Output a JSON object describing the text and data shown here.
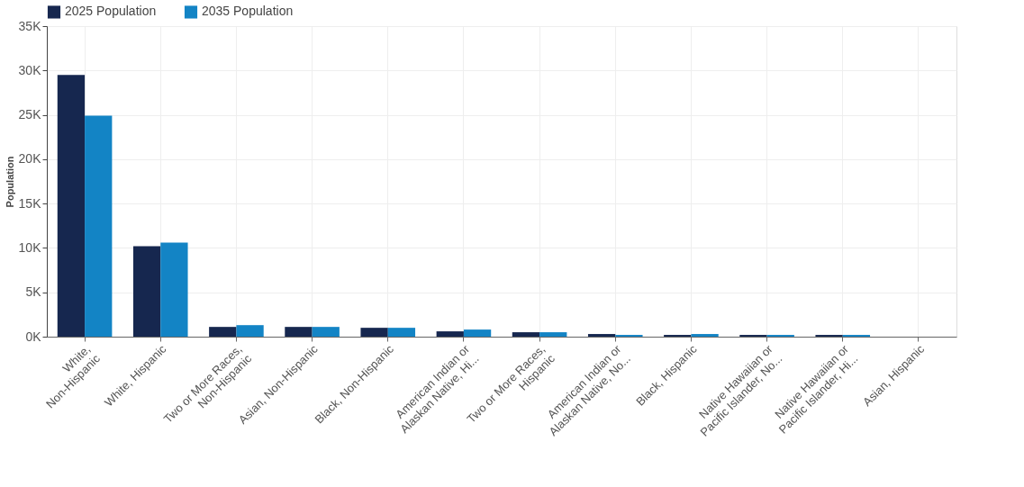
{
  "chart_data": {
    "type": "bar",
    "ylabel": "Population",
    "categories": [
      "White,\nNon-Hispanic",
      "White, Hispanic",
      "Two or More Races,\nNon-Hispanic",
      "Asian, Non-Hispanic",
      "Black, Non-Hispanic",
      "American Indian or\nAlaskan Native, Hi...",
      "Two or More Races,\nHispanic",
      "American Indian or\nAlaskan Native, No...",
      "Black, Hispanic",
      "Native Hawaiian or\nPacific Islander, No...",
      "Native Hawaiian or\nPacific Islander, Hi...",
      "Asian, Hispanic"
    ],
    "series": [
      {
        "name": "2025 Population",
        "color": "#16274f",
        "values": [
          29500,
          10200,
          1100,
          1100,
          1000,
          600,
          500,
          300,
          200,
          200,
          200,
          0
        ]
      },
      {
        "name": "2035 Population",
        "color": "#1384c5",
        "values": [
          24900,
          10600,
          1300,
          1100,
          1000,
          800,
          500,
          200,
          300,
          200,
          200,
          0
        ]
      }
    ],
    "ylim": [
      0,
      35000
    ],
    "yticks": [
      {
        "value": 0,
        "label": "0K"
      },
      {
        "value": 5000,
        "label": "5K"
      },
      {
        "value": 10000,
        "label": "10K"
      },
      {
        "value": 15000,
        "label": "15K"
      },
      {
        "value": 20000,
        "label": "20K"
      },
      {
        "value": 25000,
        "label": "25K"
      },
      {
        "value": 30000,
        "label": "30K"
      },
      {
        "value": 35000,
        "label": "35K"
      }
    ],
    "grid": true,
    "legend": "top left"
  }
}
